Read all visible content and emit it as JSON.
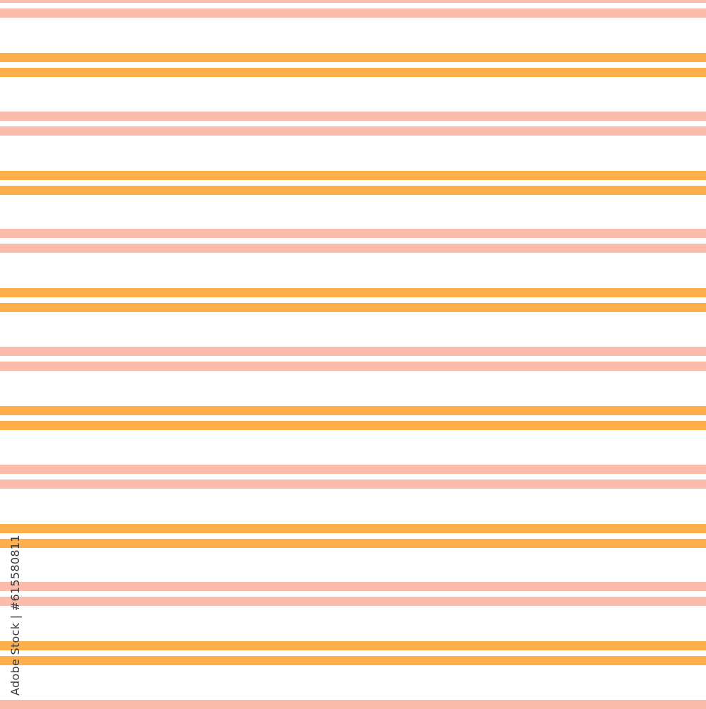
{
  "pattern": {
    "style": "horizontal double stripes",
    "colors": {
      "background": "#ffffff",
      "pink": "#fbbcab",
      "orange": "#feae4a"
    }
  },
  "credit": {
    "text": "Adobe Stock | #615580811"
  }
}
